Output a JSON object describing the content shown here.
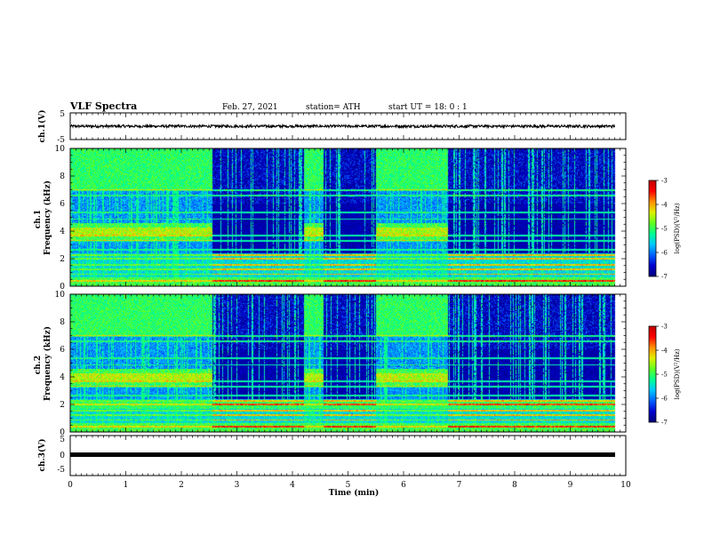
{
  "header": {
    "title": "VLF Spectra",
    "date": "Feb. 27, 2021",
    "station": "station= ATH",
    "start": "start  UT =   18: 0  : 1"
  },
  "chart_data": [
    {
      "panel": "ch1-voltage",
      "type": "line",
      "ylabel": "ch.1(V)",
      "ylim": [
        -5,
        5
      ],
      "yticks": [
        "5",
        "-5"
      ],
      "xlim": [
        0,
        10
      ],
      "baseline": 0,
      "noise_amplitude": 0.5
    },
    {
      "panel": "ch1-spectrogram",
      "type": "heatmap",
      "ylabel": "ch.1\nFrequency (kHz)",
      "ylim": [
        0,
        10
      ],
      "yticks": [
        "0",
        "2",
        "4",
        "6",
        "8",
        "10"
      ],
      "xlim": [
        0,
        10
      ],
      "data_end_min": 9.8,
      "active_intervals_min": [
        [
          0,
          2.55
        ],
        [
          4.2,
          4.55
        ],
        [
          5.5,
          6.8
        ]
      ],
      "colorbar": {
        "label": "log(PSD)(V²/Hz)",
        "range": [
          -7,
          -3
        ],
        "ticks": [
          "-3",
          "-4",
          "-5",
          "-6",
          "-7"
        ]
      }
    },
    {
      "panel": "ch2-spectrogram",
      "type": "heatmap",
      "ylabel": "ch.2\nFrequency (kHz)",
      "ylim": [
        0,
        10
      ],
      "yticks": [
        "0",
        "2",
        "4",
        "6",
        "8",
        "10"
      ],
      "xlim": [
        0,
        10
      ],
      "data_end_min": 9.8,
      "active_intervals_min": [
        [
          0,
          2.55
        ],
        [
          4.2,
          4.55
        ],
        [
          5.5,
          6.8
        ]
      ],
      "colorbar": {
        "label": "log(PSD)(V²/Hz)",
        "range": [
          -7,
          -3
        ],
        "ticks": [
          "-3",
          "-4",
          "-5",
          "-6",
          "-7"
        ]
      }
    },
    {
      "panel": "ch3-voltage",
      "type": "line",
      "ylabel": "ch.3(V)",
      "ylim": [
        -5,
        5
      ],
      "yticks": [
        "5",
        "0",
        "-5"
      ],
      "xlim": [
        0,
        10
      ],
      "xlabel": "Time (min)",
      "xticks": [
        "0",
        "1",
        "2",
        "3",
        "4",
        "5",
        "6",
        "7",
        "8",
        "9",
        "10"
      ],
      "baseline": 0
    }
  ],
  "colors": {
    "background": "#ffffff",
    "axes": "#000000",
    "colormap": [
      "#00007a",
      "#0000d0",
      "#0060ff",
      "#00c8ff",
      "#00ff90",
      "#60ff20",
      "#e0f000",
      "#ff9000",
      "#ff0000",
      "#c00000"
    ]
  }
}
